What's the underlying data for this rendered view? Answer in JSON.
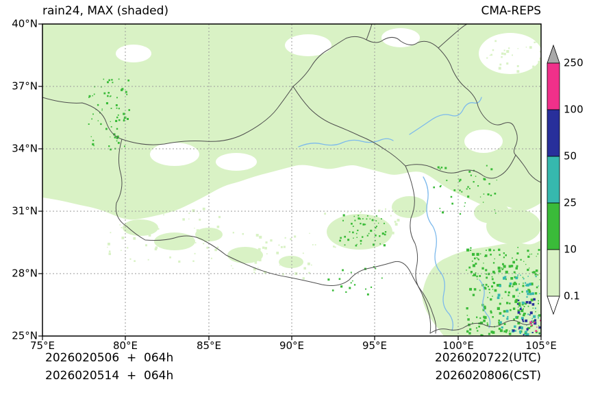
{
  "header": {
    "title": "rain24, MAX (shaded)",
    "model": "CMA-REPS"
  },
  "footer": {
    "init_utc": "2026020506  +  064h",
    "init_cst": "2026020514  +  064h",
    "valid_utc": "2026020722(UTC)",
    "valid_cst": "2026020806(CST)"
  },
  "chart_data": {
    "type": "heatmap",
    "title": "rain24, MAX (shaded)",
    "model": "CMA-REPS",
    "field": "24-h maximum precipitation (shaded), mm, over the Tibetan Plateau region",
    "x_axis": {
      "range_deg_east": [
        75,
        105
      ],
      "tick_labels": [
        "75°E",
        "80°E",
        "85°E",
        "90°E",
        "95°E",
        "100°E",
        "105°E"
      ]
    },
    "y_axis": {
      "range_deg_north": [
        25,
        40
      ],
      "tick_labels": [
        "40°N",
        "37°N",
        "34°N",
        "31°N",
        "28°N",
        "25°N"
      ]
    },
    "grid": "dashed graticule every 5 deg lon / 3 deg lat",
    "colorbar": {
      "position": "right",
      "levels": [
        "250",
        "100",
        "50",
        "25",
        "10",
        "0.1"
      ],
      "level_values": [
        0.1,
        10,
        25,
        50,
        100,
        250
      ],
      "extend": "both",
      "bands": [
        {
          "range": "<0.1",
          "color": "#ffffff"
        },
        {
          "range": "0.1-10",
          "color": "#d9f2c5"
        },
        {
          "range": "10-25",
          "color": "#3abb39"
        },
        {
          "range": "25-50",
          "color": "#36b8ae"
        },
        {
          "range": "50-100",
          "color": "#282f9b"
        },
        {
          "range": "100-250",
          "color": "#f0308a"
        },
        {
          "range": ">250",
          "color": "#a9a9a9"
        }
      ]
    },
    "features": [
      {
        "area": "broad light shading over most of plateau north of ~32N, 75-105E",
        "value_mm": "0.1-10"
      },
      {
        "area": "speckled convective cells near 78-80.5E, 34-37N",
        "value_mm": "10-25"
      },
      {
        "area": "patch near 93.5-95.5E, 29.5-31N",
        "value_mm": "10-25"
      },
      {
        "area": "scattered cells 100-103E, 28-31.5N",
        "value_mm": "10-25"
      },
      {
        "area": "widespread rain 100.5-105E, 25-29.5N (southeast corner)",
        "value_mm": "10-50"
      },
      {
        "area": "embedded heavy cells 103-105E, 25-27.5N",
        "value_mm": "50-100"
      },
      {
        "area": "dry (white) central-south 80-100E, 25-31N and scattered gaps elsewhere",
        "value_mm": "<0.1"
      }
    ]
  }
}
